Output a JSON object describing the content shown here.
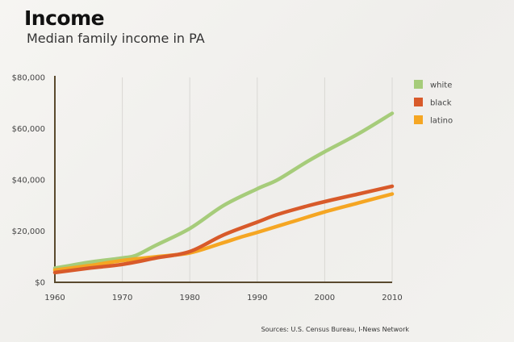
{
  "title": "Income",
  "subtitle": "Median family income in PA",
  "source": "Sources: U.S. Census Bureau, I-News Network",
  "chart_data": {
    "type": "line",
    "title": "Income",
    "subtitle": "Median family income in PA",
    "xlabel": "",
    "ylabel": "",
    "xlim": [
      1960,
      2010
    ],
    "ylim": [
      0,
      80000
    ],
    "x_ticks": [
      1960,
      1970,
      1980,
      1990,
      2000,
      2010
    ],
    "y_ticks": [
      0,
      20000,
      40000,
      60000,
      80000
    ],
    "y_tick_labels": [
      "$0",
      "$20,000",
      "$40,000",
      "$60,000",
      "$80,000"
    ],
    "x_tick_labels": [
      "1960",
      "1970",
      "1980",
      "1990",
      "2000",
      "2010"
    ],
    "grid": "vertical",
    "legend_position": "top-right",
    "series": [
      {
        "name": "white",
        "color": "#a6cc7a",
        "x": [
          1960,
          1965,
          1970,
          1972,
          1975,
          1980,
          1985,
          1990,
          1993,
          1997,
          2000,
          2005,
          2010
        ],
        "y": [
          5500,
          7800,
          9500,
          10500,
          14500,
          21000,
          30000,
          36500,
          40000,
          46500,
          51000,
          58000,
          66000
        ]
      },
      {
        "name": "black",
        "color": "#d85a2a",
        "x": [
          1960,
          1965,
          1970,
          1975,
          1980,
          1985,
          1990,
          1993,
          1997,
          2000,
          2005,
          2010
        ],
        "y": [
          3800,
          5500,
          7000,
          9500,
          12000,
          18500,
          23500,
          26500,
          29500,
          31500,
          34500,
          37500
        ]
      },
      {
        "name": "latino",
        "color": "#f5a623",
        "x": [
          1960,
          1965,
          1970,
          1975,
          1980,
          1985,
          1988,
          1990,
          1995,
          2000,
          2005,
          2010
        ],
        "y": [
          4800,
          6500,
          8500,
          10000,
          11500,
          15500,
          18000,
          19500,
          23500,
          27500,
          31000,
          34500
        ]
      }
    ]
  }
}
